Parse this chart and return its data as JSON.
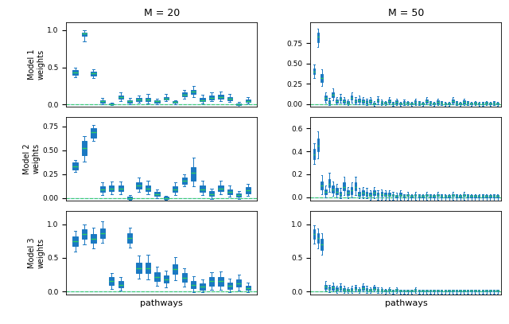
{
  "col_titles": [
    "M = 20",
    "M = 50"
  ],
  "xlabel": "pathways",
  "box_facecolor": "#aad4e8",
  "median_color": "#32cd64",
  "whisker_color": "#1a78c2",
  "dashed_color": "#32cd64",
  "hline_color": "#aad4e8",
  "models": [
    {
      "m20": {
        "medians": [
          0.43,
          0.95,
          0.42,
          0.04,
          0.0,
          0.1,
          0.04,
          0.07,
          0.07,
          0.04,
          0.08,
          0.03,
          0.13,
          0.17,
          0.06,
          0.09,
          0.1,
          0.08,
          0.0,
          0.05
        ],
        "q1": [
          0.4,
          0.92,
          0.39,
          0.02,
          0.0,
          0.08,
          0.02,
          0.05,
          0.04,
          0.02,
          0.07,
          0.02,
          0.11,
          0.14,
          0.04,
          0.07,
          0.08,
          0.06,
          -0.01,
          0.03
        ],
        "q3": [
          0.46,
          0.97,
          0.44,
          0.06,
          0.01,
          0.12,
          0.06,
          0.09,
          0.09,
          0.06,
          0.1,
          0.04,
          0.16,
          0.2,
          0.09,
          0.12,
          0.13,
          0.1,
          0.01,
          0.07
        ],
        "whishi": [
          0.49,
          1.0,
          0.47,
          0.09,
          0.02,
          0.16,
          0.09,
          0.12,
          0.14,
          0.08,
          0.14,
          0.06,
          0.2,
          0.25,
          0.13,
          0.16,
          0.17,
          0.14,
          0.03,
          0.1
        ],
        "whislo": [
          0.37,
          0.85,
          0.36,
          0.0,
          -0.01,
          0.05,
          0.0,
          0.02,
          0.01,
          0.0,
          0.04,
          0.0,
          0.08,
          0.1,
          0.01,
          0.04,
          0.05,
          0.03,
          -0.03,
          0.01
        ],
        "ylim": [
          -0.03,
          1.1
        ],
        "yticks": [
          0.0,
          0.5,
          1.0
        ],
        "row_label": "Model 1\nweights"
      },
      "m50": {
        "medians": [
          0.4,
          0.83,
          0.32,
          0.08,
          0.03,
          0.12,
          0.04,
          0.07,
          0.04,
          0.02,
          0.08,
          0.04,
          0.05,
          0.04,
          0.03,
          0.04,
          0.01,
          0.05,
          0.03,
          0.02,
          0.04,
          0.01,
          0.03,
          0.01,
          0.02,
          0.02,
          0.01,
          0.03,
          0.02,
          0.01,
          0.04,
          0.02,
          0.01,
          0.03,
          0.02,
          0.01,
          0.01,
          0.04,
          0.02,
          0.01,
          0.03,
          0.02,
          0.01,
          0.02,
          0.01,
          0.01,
          0.02,
          0.01,
          0.02,
          0.01
        ],
        "q1": [
          0.37,
          0.76,
          0.27,
          0.05,
          0.01,
          0.09,
          0.02,
          0.05,
          0.02,
          0.01,
          0.06,
          0.02,
          0.03,
          0.02,
          0.01,
          0.02,
          0.0,
          0.03,
          0.01,
          0.01,
          0.02,
          0.0,
          0.01,
          0.0,
          0.01,
          0.01,
          0.0,
          0.01,
          0.01,
          0.0,
          0.02,
          0.01,
          0.0,
          0.01,
          0.01,
          0.0,
          0.0,
          0.02,
          0.01,
          0.0,
          0.01,
          0.01,
          0.0,
          0.01,
          0.0,
          0.0,
          0.01,
          0.0,
          0.01,
          0.0
        ],
        "q3": [
          0.44,
          0.88,
          0.37,
          0.11,
          0.05,
          0.15,
          0.06,
          0.09,
          0.06,
          0.04,
          0.11,
          0.06,
          0.07,
          0.06,
          0.05,
          0.06,
          0.02,
          0.07,
          0.04,
          0.03,
          0.06,
          0.02,
          0.05,
          0.02,
          0.04,
          0.03,
          0.02,
          0.05,
          0.03,
          0.02,
          0.06,
          0.03,
          0.02,
          0.05,
          0.03,
          0.02,
          0.02,
          0.06,
          0.03,
          0.02,
          0.05,
          0.03,
          0.02,
          0.03,
          0.02,
          0.02,
          0.03,
          0.02,
          0.03,
          0.02
        ],
        "whishi": [
          0.49,
          0.93,
          0.43,
          0.15,
          0.08,
          0.19,
          0.09,
          0.13,
          0.09,
          0.06,
          0.15,
          0.09,
          0.11,
          0.09,
          0.07,
          0.09,
          0.04,
          0.1,
          0.06,
          0.04,
          0.09,
          0.03,
          0.07,
          0.03,
          0.06,
          0.04,
          0.03,
          0.07,
          0.04,
          0.03,
          0.09,
          0.04,
          0.03,
          0.07,
          0.04,
          0.03,
          0.03,
          0.09,
          0.04,
          0.03,
          0.07,
          0.04,
          0.03,
          0.04,
          0.03,
          0.03,
          0.04,
          0.03,
          0.04,
          0.03
        ],
        "whislo": [
          0.32,
          0.7,
          0.22,
          0.02,
          -0.01,
          0.05,
          0.0,
          0.02,
          0.0,
          -0.01,
          0.02,
          0.0,
          0.0,
          0.0,
          -0.01,
          0.0,
          -0.02,
          0.0,
          -0.01,
          -0.01,
          0.0,
          -0.02,
          -0.01,
          -0.02,
          -0.01,
          -0.01,
          -0.02,
          -0.01,
          -0.01,
          -0.02,
          0.0,
          -0.01,
          -0.02,
          -0.01,
          -0.01,
          -0.02,
          -0.02,
          0.0,
          -0.01,
          -0.02,
          -0.01,
          -0.01,
          -0.02,
          -0.01,
          -0.02,
          -0.02,
          -0.01,
          -0.02,
          -0.01,
          -0.02
        ],
        "ylim": [
          -0.03,
          1.0
        ],
        "yticks": [
          0.0,
          0.25,
          0.5,
          0.75
        ]
      }
    },
    {
      "m20": {
        "medians": [
          0.33,
          0.52,
          0.69,
          0.09,
          0.1,
          0.1,
          0.0,
          0.13,
          0.1,
          0.04,
          0.0,
          0.09,
          0.18,
          0.26,
          0.09,
          0.04,
          0.1,
          0.06,
          0.03,
          0.08
        ],
        "q1": [
          0.3,
          0.45,
          0.63,
          0.06,
          0.07,
          0.07,
          -0.01,
          0.1,
          0.07,
          0.02,
          -0.01,
          0.06,
          0.15,
          0.18,
          0.06,
          0.02,
          0.07,
          0.04,
          0.01,
          0.05
        ],
        "q3": [
          0.37,
          0.6,
          0.73,
          0.12,
          0.13,
          0.13,
          0.01,
          0.16,
          0.13,
          0.06,
          0.01,
          0.12,
          0.21,
          0.32,
          0.13,
          0.07,
          0.13,
          0.09,
          0.05,
          0.11
        ],
        "whishi": [
          0.4,
          0.65,
          0.76,
          0.16,
          0.17,
          0.17,
          0.03,
          0.21,
          0.18,
          0.09,
          0.02,
          0.16,
          0.25,
          0.42,
          0.18,
          0.1,
          0.18,
          0.13,
          0.07,
          0.15
        ],
        "whislo": [
          0.27,
          0.38,
          0.6,
          0.03,
          0.04,
          0.04,
          -0.02,
          0.06,
          0.04,
          0.0,
          -0.02,
          0.03,
          0.12,
          0.12,
          0.03,
          -0.01,
          0.04,
          0.01,
          -0.01,
          0.02
        ],
        "ylim": [
          -0.03,
          0.85
        ],
        "yticks": [
          0.0,
          0.25,
          0.5,
          0.75
        ],
        "row_label": "Model 2\nweights"
      },
      "m50": {
        "medians": [
          0.37,
          0.45,
          0.1,
          0.05,
          0.12,
          0.07,
          0.05,
          0.03,
          0.09,
          0.04,
          0.06,
          0.09,
          0.03,
          0.04,
          0.03,
          0.02,
          0.04,
          0.02,
          0.03,
          0.02,
          0.02,
          0.02,
          0.01,
          0.02,
          0.01,
          0.02,
          0.01,
          0.02,
          0.01,
          0.01,
          0.02,
          0.01,
          0.01,
          0.02,
          0.01,
          0.01,
          0.01,
          0.02,
          0.01,
          0.01,
          0.02,
          0.01,
          0.01,
          0.01,
          0.01,
          0.01,
          0.01,
          0.01,
          0.01,
          0.01
        ],
        "q1": [
          0.33,
          0.4,
          0.07,
          0.03,
          0.09,
          0.04,
          0.03,
          0.01,
          0.06,
          0.02,
          0.03,
          0.06,
          0.01,
          0.02,
          0.01,
          0.01,
          0.02,
          0.01,
          0.01,
          0.01,
          0.01,
          0.01,
          0.0,
          0.01,
          0.0,
          0.01,
          0.0,
          0.01,
          0.0,
          0.0,
          0.01,
          0.0,
          0.0,
          0.01,
          0.0,
          0.0,
          0.0,
          0.01,
          0.0,
          0.0,
          0.01,
          0.0,
          0.0,
          0.0,
          0.0,
          0.0,
          0.0,
          0.0,
          0.0,
          0.0
        ],
        "q3": [
          0.42,
          0.51,
          0.14,
          0.07,
          0.16,
          0.1,
          0.08,
          0.05,
          0.13,
          0.06,
          0.09,
          0.13,
          0.05,
          0.06,
          0.05,
          0.04,
          0.06,
          0.04,
          0.05,
          0.04,
          0.04,
          0.03,
          0.02,
          0.04,
          0.02,
          0.03,
          0.02,
          0.03,
          0.02,
          0.02,
          0.03,
          0.02,
          0.02,
          0.03,
          0.02,
          0.02,
          0.02,
          0.03,
          0.02,
          0.02,
          0.03,
          0.02,
          0.02,
          0.02,
          0.02,
          0.02,
          0.02,
          0.02,
          0.02,
          0.02
        ],
        "whishi": [
          0.47,
          0.57,
          0.19,
          0.1,
          0.21,
          0.14,
          0.12,
          0.08,
          0.18,
          0.09,
          0.13,
          0.18,
          0.08,
          0.09,
          0.08,
          0.06,
          0.09,
          0.06,
          0.07,
          0.06,
          0.06,
          0.05,
          0.04,
          0.06,
          0.03,
          0.05,
          0.03,
          0.05,
          0.03,
          0.03,
          0.05,
          0.03,
          0.03,
          0.05,
          0.03,
          0.03,
          0.03,
          0.05,
          0.03,
          0.03,
          0.05,
          0.03,
          0.03,
          0.03,
          0.03,
          0.03,
          0.03,
          0.03,
          0.03,
          0.03
        ],
        "whislo": [
          0.29,
          0.34,
          0.03,
          0.0,
          0.05,
          0.01,
          0.0,
          -0.01,
          0.02,
          -0.01,
          0.0,
          0.02,
          -0.01,
          -0.01,
          -0.01,
          -0.02,
          -0.01,
          -0.02,
          -0.02,
          -0.02,
          -0.02,
          -0.02,
          -0.03,
          -0.02,
          -0.03,
          -0.02,
          -0.03,
          -0.02,
          -0.03,
          -0.03,
          -0.02,
          -0.03,
          -0.03,
          -0.02,
          -0.03,
          -0.03,
          -0.03,
          -0.02,
          -0.03,
          -0.03,
          -0.02,
          -0.03,
          -0.03,
          -0.03,
          -0.03,
          -0.03,
          -0.03,
          -0.03,
          -0.03,
          -0.03
        ],
        "ylim": [
          -0.03,
          0.7
        ],
        "yticks": [
          0.0,
          0.2,
          0.4,
          0.6
        ]
      }
    },
    {
      "m20": {
        "medians": [
          0.75,
          0.85,
          0.78,
          0.87,
          0.15,
          0.1,
          0.8,
          0.35,
          0.35,
          0.22,
          0.18,
          0.33,
          0.2,
          0.1,
          0.07,
          0.15,
          0.15,
          0.08,
          0.12,
          0.05
        ],
        "q1": [
          0.68,
          0.78,
          0.72,
          0.8,
          0.1,
          0.06,
          0.73,
          0.28,
          0.28,
          0.16,
          0.13,
          0.26,
          0.14,
          0.05,
          0.03,
          0.09,
          0.09,
          0.04,
          0.07,
          0.02
        ],
        "q3": [
          0.82,
          0.92,
          0.85,
          0.94,
          0.21,
          0.15,
          0.87,
          0.43,
          0.43,
          0.29,
          0.24,
          0.41,
          0.27,
          0.16,
          0.12,
          0.22,
          0.22,
          0.13,
          0.18,
          0.09
        ],
        "whishi": [
          0.9,
          1.0,
          0.95,
          1.05,
          0.28,
          0.21,
          0.95,
          0.53,
          0.55,
          0.37,
          0.31,
          0.51,
          0.35,
          0.23,
          0.18,
          0.29,
          0.3,
          0.19,
          0.25,
          0.13
        ],
        "whislo": [
          0.6,
          0.7,
          0.64,
          0.72,
          0.04,
          0.01,
          0.65,
          0.19,
          0.18,
          0.08,
          0.06,
          0.17,
          0.07,
          -0.01,
          -0.01,
          0.02,
          0.02,
          -0.01,
          0.01,
          -0.01
        ],
        "ylim": [
          -0.05,
          1.2
        ],
        "yticks": [
          0.0,
          0.5,
          1.0
        ],
        "row_label": "Model 3\nweights"
      },
      "m50": {
        "medians": [
          0.85,
          0.8,
          0.7,
          0.07,
          0.04,
          0.06,
          0.03,
          0.05,
          0.03,
          0.02,
          0.03,
          0.04,
          0.02,
          0.05,
          0.03,
          0.02,
          0.04,
          0.02,
          0.02,
          0.01,
          0.02,
          0.01,
          0.02,
          0.01,
          0.01,
          0.01,
          0.01,
          0.02,
          0.01,
          0.01,
          0.01,
          0.01,
          0.01,
          0.01,
          0.01,
          0.01,
          0.01,
          0.01,
          0.01,
          0.01,
          0.01,
          0.01,
          0.01,
          0.01,
          0.01,
          0.01,
          0.01,
          0.01,
          0.01,
          0.01
        ],
        "q1": [
          0.78,
          0.72,
          0.62,
          0.04,
          0.02,
          0.03,
          0.01,
          0.02,
          0.01,
          0.01,
          0.01,
          0.02,
          0.01,
          0.02,
          0.01,
          0.01,
          0.02,
          0.01,
          0.01,
          0.0,
          0.01,
          0.0,
          0.01,
          0.0,
          0.0,
          0.0,
          0.0,
          0.01,
          0.0,
          0.0,
          0.0,
          0.0,
          0.0,
          0.0,
          0.0,
          0.0,
          0.0,
          0.0,
          0.0,
          0.0,
          0.0,
          0.0,
          0.0,
          0.0,
          0.0,
          0.0,
          0.0,
          0.0,
          0.0,
          0.0
        ],
        "q3": [
          0.92,
          0.87,
          0.78,
          0.1,
          0.07,
          0.09,
          0.06,
          0.08,
          0.05,
          0.04,
          0.05,
          0.07,
          0.04,
          0.08,
          0.05,
          0.04,
          0.07,
          0.04,
          0.04,
          0.02,
          0.04,
          0.02,
          0.04,
          0.02,
          0.02,
          0.02,
          0.02,
          0.04,
          0.02,
          0.02,
          0.02,
          0.02,
          0.02,
          0.02,
          0.02,
          0.02,
          0.02,
          0.02,
          0.02,
          0.02,
          0.02,
          0.02,
          0.02,
          0.02,
          0.02,
          0.02,
          0.02,
          0.02,
          0.02,
          0.02
        ],
        "whishi": [
          0.99,
          0.94,
          0.87,
          0.15,
          0.1,
          0.13,
          0.09,
          0.12,
          0.08,
          0.06,
          0.08,
          0.1,
          0.06,
          0.12,
          0.08,
          0.06,
          0.1,
          0.06,
          0.06,
          0.04,
          0.06,
          0.03,
          0.06,
          0.03,
          0.03,
          0.03,
          0.03,
          0.06,
          0.03,
          0.03,
          0.03,
          0.03,
          0.03,
          0.03,
          0.03,
          0.03,
          0.03,
          0.03,
          0.03,
          0.03,
          0.03,
          0.03,
          0.03,
          0.03,
          0.03,
          0.03,
          0.03,
          0.03,
          0.03,
          0.03
        ],
        "whislo": [
          0.71,
          0.64,
          0.55,
          0.01,
          -0.01,
          0.0,
          -0.02,
          0.0,
          -0.02,
          -0.02,
          -0.02,
          0.0,
          -0.02,
          0.0,
          -0.02,
          -0.02,
          0.0,
          -0.02,
          -0.02,
          -0.03,
          -0.02,
          -0.03,
          -0.02,
          -0.03,
          -0.03,
          -0.03,
          -0.03,
          -0.02,
          -0.03,
          -0.03,
          -0.03,
          -0.03,
          -0.03,
          -0.03,
          -0.03,
          -0.03,
          -0.03,
          -0.03,
          -0.03,
          -0.03,
          -0.03,
          -0.03,
          -0.03,
          -0.03,
          -0.03,
          -0.03,
          -0.03,
          -0.03,
          -0.03,
          -0.03
        ],
        "ylim": [
          -0.05,
          1.2
        ],
        "yticks": [
          0.0,
          0.5,
          1.0
        ]
      }
    }
  ]
}
